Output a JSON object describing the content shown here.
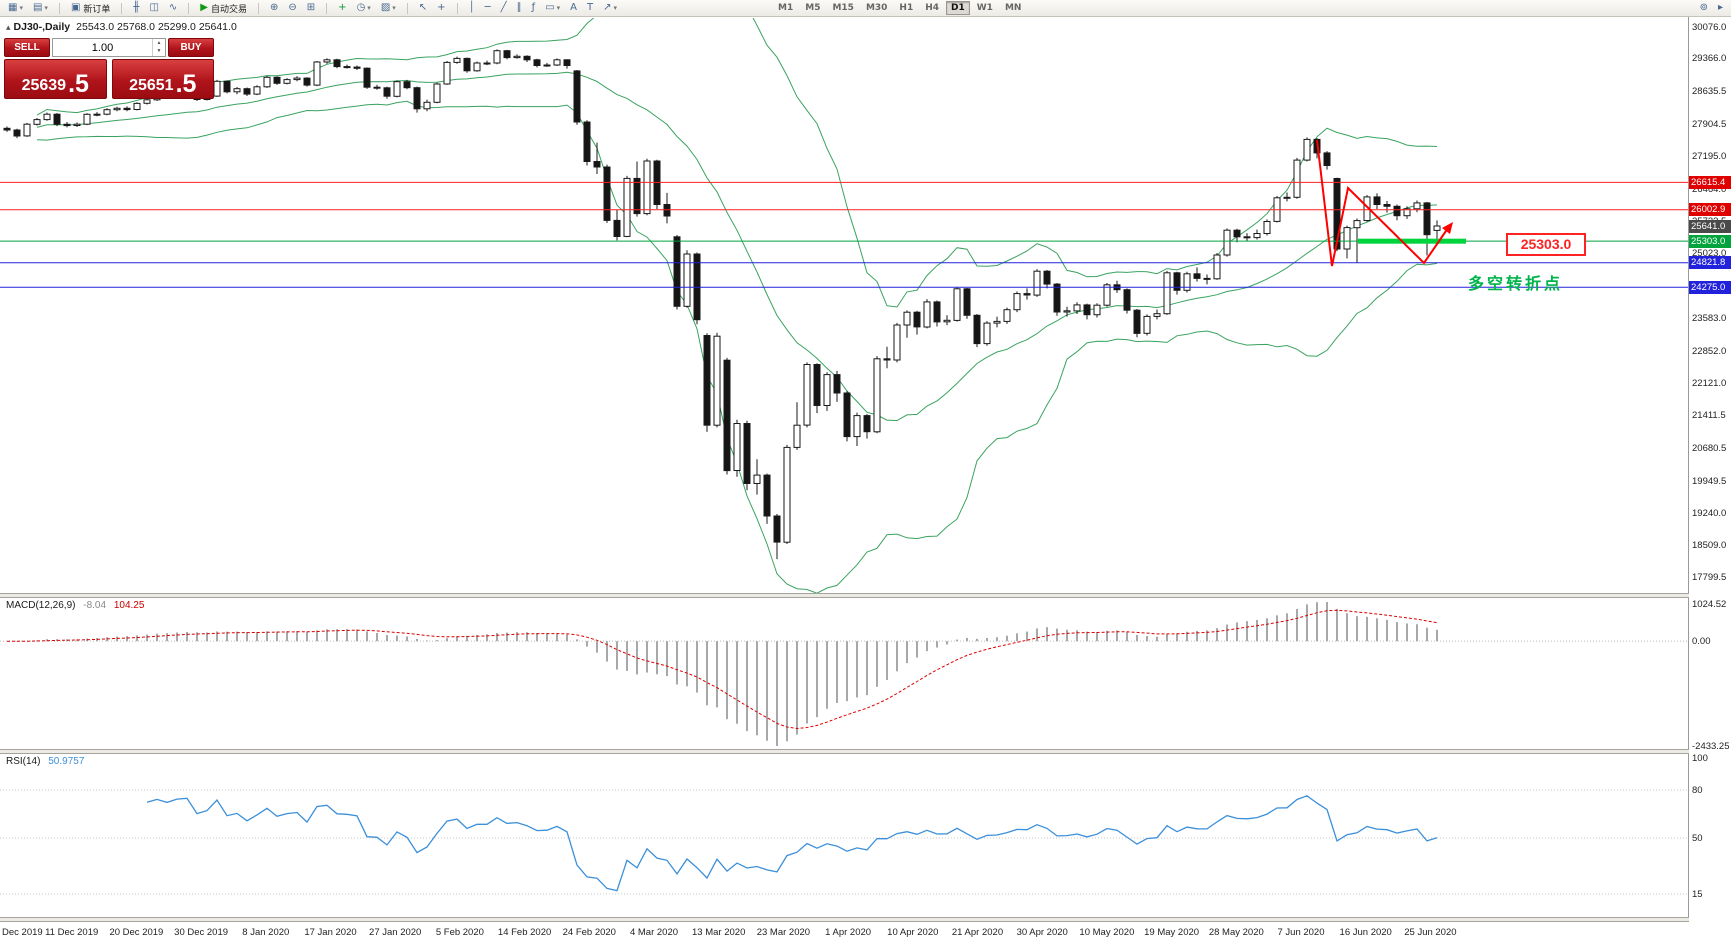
{
  "toolbar": {
    "arrow_glyph": "▾",
    "groups": [
      {
        "items": [
          {
            "name": "new-chart-button",
            "glyph": "▦",
            "arrow": true
          },
          {
            "name": "profiles-button",
            "glyph": "▤",
            "arrow": true
          }
        ]
      },
      {
        "items": [
          {
            "name": "new-order-button",
            "glyph": "▣",
            "label": "新订单"
          }
        ]
      },
      {
        "items": [
          {
            "name": "bar-chart-button",
            "glyph": "╫"
          },
          {
            "name": "candlestick-chart-button",
            "glyph": "◫"
          },
          {
            "name": "line-chart-button",
            "glyph": "∿"
          }
        ]
      },
      {
        "items": [
          {
            "name": "autotrade-button",
            "glyph": "▶",
            "glyph_color": "#119911",
            "label": "自动交易"
          }
        ]
      },
      {
        "items": [
          {
            "name": "zoom-in-button",
            "glyph": "⊕"
          },
          {
            "name": "zoom-out-button",
            "glyph": "⊖"
          },
          {
            "name": "tile-windows-button",
            "glyph": "⊞"
          }
        ]
      },
      {
        "items": [
          {
            "name": "add-indicator-button",
            "glyph": "+",
            "glyph_color": "#0a9a3c"
          },
          {
            "name": "period-menu-button",
            "glyph": "◷",
            "arrow": true
          },
          {
            "name": "template-menu-button",
            "glyph": "▨",
            "arrow": true
          }
        ]
      },
      {
        "items": [
          {
            "name": "cursor-button",
            "glyph": "↖"
          },
          {
            "name": "crosshair-button",
            "glyph": "+"
          }
        ]
      },
      {
        "items": [
          {
            "name": "vertical-line-button",
            "glyph": "│"
          },
          {
            "name": "horizontal-line-button",
            "glyph": "─"
          },
          {
            "name": "trendline-button",
            "glyph": "╱"
          },
          {
            "name": "channel-button",
            "glyph": "∥"
          },
          {
            "name": "fibonacci-button",
            "glyph": "ƒ"
          },
          {
            "name": "shapes-button",
            "glyph": "▭",
            "arrow": true
          },
          {
            "name": "text-button",
            "glyph": "A"
          },
          {
            "name": "label-button",
            "glyph": "T"
          },
          {
            "name": "arrow-tools-button",
            "glyph": "↗",
            "arrow": true
          }
        ]
      }
    ],
    "timeframes": [
      "M1",
      "M5",
      "M15",
      "M30",
      "H1",
      "H4",
      "D1",
      "W1",
      "MN"
    ],
    "active_timeframe": "D1",
    "right_items": [
      {
        "name": "magnifier-icon",
        "glyph": "⊚"
      },
      {
        "name": "pointer-icon",
        "glyph": "▸"
      }
    ]
  },
  "chart_title": {
    "icon_glyph": "▴",
    "symbol": "DJ30-,Daily",
    "open": "25543.0",
    "high": "25768.0",
    "low": "25299.0",
    "close": "25641.0"
  },
  "trade_panel": {
    "sell_label": "SELL",
    "buy_label": "BUY",
    "volume": "1.00",
    "spinner_up": "▲",
    "spinner_down": "▼",
    "sell_price_main": "25639",
    "sell_price_frac": ".5",
    "buy_price_main": "25651",
    "buy_price_frac": ".5"
  },
  "annotations": {
    "support_callout": "25303.0",
    "turning_point_text": "多空转折点"
  },
  "chart_data": {
    "type": "candlestick",
    "symbol": "DJ30-",
    "period": "Daily",
    "last_ohlc": {
      "open": 25543.0,
      "high": 25768.0,
      "low": 25299.0,
      "close": 25641.0
    },
    "price_axis_ticks": [
      30076.0,
      29366.0,
      28635.5,
      27904.5,
      27195.0,
      26464.0,
      25733.5,
      25023.0,
      24292.5,
      23583.0,
      22852.0,
      22121.0,
      21411.5,
      20680.5,
      19949.5,
      19240.0,
      18509.0,
      17799.5
    ],
    "time_axis": [
      "Dec 2019",
      "11 Dec 2019",
      "20 Dec 2019",
      "30 Dec 2019",
      "8 Jan 2020",
      "17 Jan 2020",
      "27 Jan 2020",
      "5 Feb 2020",
      "14 Feb 2020",
      "24 Feb 2020",
      "4 Mar 2020",
      "13 Mar 2020",
      "23 Mar 2020",
      "1 Apr 2020",
      "10 Apr 2020",
      "21 Apr 2020",
      "30 Apr 2020",
      "10 May 2020",
      "19 May 2020",
      "28 May 2020",
      "7 Jun 2020",
      "16 Jun 2020",
      "25 Jun 2020"
    ],
    "levels": [
      {
        "label": "26615.4",
        "value": 26615.4,
        "color": "#ff2020",
        "line": true,
        "tag_bg": "#e00000"
      },
      {
        "label": "26002.9",
        "value": 26002.9,
        "color": "#ff2020",
        "line": true,
        "tag_bg": "#e00000"
      },
      {
        "label": "25641.0",
        "value": 25641.0,
        "color": "#4a4a4a",
        "line": false,
        "tag_bg": "#4a4a4a"
      },
      {
        "label": "25303.0",
        "value": 25303.0,
        "color": "#00a33c",
        "line": true,
        "tag_bg": "#00a33c"
      },
      {
        "label": "24821.8",
        "value": 24821.8,
        "color": "#2222dd",
        "line": true,
        "tag_bg": "#2222dd"
      },
      {
        "label": "24275.0",
        "value": 24275.0,
        "color": "#2222dd",
        "line": true,
        "tag_bg": "#2222dd"
      }
    ],
    "highlight_bar": {
      "value": 25303.0,
      "color": "#00d43c"
    },
    "bollinger": {
      "period": 20,
      "deviation": 2,
      "color": "#3aa35f"
    },
    "candles": [
      [
        27820,
        27860,
        27740,
        27783
      ],
      [
        27783,
        27810,
        27600,
        27649
      ],
      [
        27649,
        27940,
        27630,
        27911
      ],
      [
        27911,
        28050,
        27880,
        28015
      ],
      [
        28015,
        28170,
        27990,
        28135
      ],
      [
        28135,
        28160,
        27870,
        27910
      ],
      [
        27910,
        27960,
        27840,
        27882
      ],
      [
        27882,
        27950,
        27850,
        27911
      ],
      [
        27911,
        28160,
        27890,
        28132
      ],
      [
        28132,
        28180,
        28090,
        28135
      ],
      [
        28135,
        28270,
        28110,
        28235
      ],
      [
        28235,
        28300,
        28200,
        28267
      ],
      [
        28267,
        28310,
        28200,
        28239
      ],
      [
        28239,
        28400,
        28220,
        28376
      ],
      [
        28376,
        28490,
        28350,
        28455
      ],
      [
        28455,
        28580,
        28430,
        28551
      ],
      [
        28551,
        28590,
        28480,
        28515
      ],
      [
        28515,
        28650,
        28500,
        28621
      ],
      [
        28621,
        28680,
        28590,
        28645
      ],
      [
        28645,
        28670,
        28430,
        28462
      ],
      [
        28462,
        28570,
        28440,
        28538
      ],
      [
        28538,
        28900,
        28520,
        28869
      ],
      [
        28869,
        28890,
        28600,
        28635
      ],
      [
        28635,
        28740,
        28580,
        28704
      ],
      [
        28704,
        28730,
        28540,
        28584
      ],
      [
        28584,
        28780,
        28560,
        28746
      ],
      [
        28746,
        28990,
        28720,
        28957
      ],
      [
        28957,
        28980,
        28790,
        28824
      ],
      [
        28824,
        28940,
        28800,
        28907
      ],
      [
        28907,
        28980,
        28870,
        28940
      ],
      [
        28940,
        28960,
        28750,
        28783
      ],
      [
        28783,
        29320,
        28760,
        29298
      ],
      [
        29298,
        29380,
        29260,
        29348
      ],
      [
        29348,
        29370,
        29160,
        29196
      ],
      [
        29196,
        29240,
        29150,
        29186
      ],
      [
        29186,
        29220,
        29120,
        29160
      ],
      [
        29160,
        29180,
        28700,
        28736
      ],
      [
        28736,
        28790,
        28680,
        28723
      ],
      [
        28723,
        28750,
        28480,
        28535
      ],
      [
        28535,
        28890,
        28510,
        28860
      ],
      [
        28860,
        28900,
        28690,
        28726
      ],
      [
        28726,
        28750,
        28170,
        28256
      ],
      [
        28256,
        28460,
        28200,
        28400
      ],
      [
        28400,
        28840,
        28380,
        28808
      ],
      [
        28808,
        29320,
        28790,
        29290
      ],
      [
        29290,
        29420,
        29260,
        29380
      ],
      [
        29380,
        29400,
        29060,
        29103
      ],
      [
        29103,
        29310,
        29080,
        29277
      ],
      [
        29277,
        29330,
        29230,
        29276
      ],
      [
        29276,
        29580,
        29250,
        29551
      ],
      [
        29551,
        29570,
        29360,
        29398
      ],
      [
        29398,
        29470,
        29370,
        29426
      ],
      [
        29426,
        29450,
        29300,
        29348
      ],
      [
        29348,
        29370,
        29180,
        29220
      ],
      [
        29220,
        29280,
        29190,
        29232
      ],
      [
        29232,
        29380,
        29210,
        29348
      ],
      [
        29348,
        29360,
        29150,
        29220
      ],
      [
        29100,
        29120,
        27900,
        27961
      ],
      [
        27961,
        28000,
        26990,
        27081
      ],
      [
        27081,
        27500,
        26800,
        26958
      ],
      [
        26958,
        27010,
        25710,
        25767
      ],
      [
        25767,
        26000,
        25320,
        25409
      ],
      [
        25409,
        26760,
        25390,
        26703
      ],
      [
        26703,
        27080,
        25850,
        25917
      ],
      [
        25917,
        27140,
        25880,
        27090
      ],
      [
        27090,
        27120,
        26020,
        26121
      ],
      [
        26121,
        26380,
        25700,
        25864
      ],
      [
        25400,
        25440,
        23780,
        23851
      ],
      [
        23851,
        25100,
        23820,
        25018
      ],
      [
        25018,
        25050,
        23450,
        23553
      ],
      [
        23200,
        23250,
        21050,
        21200
      ],
      [
        21200,
        23260,
        21150,
        23185
      ],
      [
        22650,
        22700,
        20100,
        20188
      ],
      [
        20188,
        21320,
        20050,
        21237
      ],
      [
        21237,
        21300,
        19750,
        19899
      ],
      [
        19899,
        20440,
        19650,
        20087
      ],
      [
        20087,
        20120,
        19000,
        19174
      ],
      [
        19174,
        19220,
        18213,
        18592
      ],
      [
        18592,
        20760,
        18550,
        20705
      ],
      [
        20705,
        21710,
        20650,
        21200
      ],
      [
        21200,
        22600,
        21150,
        22552
      ],
      [
        22552,
        22580,
        21470,
        21637
      ],
      [
        21637,
        22380,
        21520,
        22327
      ],
      [
        22327,
        22410,
        21720,
        21917
      ],
      [
        21917,
        21960,
        20840,
        20944
      ],
      [
        20944,
        21480,
        20735,
        21413
      ],
      [
        21413,
        21450,
        20900,
        21053
      ],
      [
        21053,
        22740,
        21020,
        22680
      ],
      [
        22680,
        22950,
        22470,
        22654
      ],
      [
        22654,
        23480,
        22600,
        23434
      ],
      [
        23434,
        23760,
        23150,
        23719
      ],
      [
        23719,
        23750,
        23220,
        23391
      ],
      [
        23391,
        24010,
        23360,
        23950
      ],
      [
        23950,
        23980,
        23400,
        23504
      ],
      [
        23504,
        23650,
        23430,
        23538
      ],
      [
        23538,
        24280,
        23510,
        24242
      ],
      [
        24242,
        24260,
        23570,
        23650
      ],
      [
        23650,
        23680,
        22940,
        23019
      ],
      [
        23019,
        23520,
        22970,
        23476
      ],
      [
        23476,
        23620,
        23380,
        23515
      ],
      [
        23515,
        23820,
        23460,
        23775
      ],
      [
        23775,
        24180,
        23720,
        24134
      ],
      [
        24134,
        24250,
        24000,
        24102
      ],
      [
        24102,
        24680,
        24060,
        24634
      ],
      [
        24634,
        24660,
        24250,
        24346
      ],
      [
        24346,
        24370,
        23640,
        23724
      ],
      [
        23724,
        23840,
        23620,
        23750
      ],
      [
        23750,
        23940,
        23680,
        23883
      ],
      [
        23883,
        23910,
        23560,
        23665
      ],
      [
        23665,
        23920,
        23600,
        23876
      ],
      [
        23876,
        24370,
        23840,
        24331
      ],
      [
        24331,
        24420,
        24150,
        24222
      ],
      [
        24222,
        24250,
        23690,
        23765
      ],
      [
        23765,
        23790,
        23160,
        23248
      ],
      [
        23248,
        23670,
        23200,
        23625
      ],
      [
        23625,
        23780,
        23560,
        23685
      ],
      [
        23685,
        24640,
        23660,
        24597
      ],
      [
        24597,
        24620,
        24110,
        24207
      ],
      [
        24207,
        24620,
        24160,
        24576
      ],
      [
        24576,
        24720,
        24400,
        24474
      ],
      [
        24474,
        24560,
        24340,
        24465
      ],
      [
        24465,
        25040,
        24440,
        24995
      ],
      [
        24995,
        25590,
        24960,
        25548
      ],
      [
        25548,
        25580,
        25280,
        25401
      ],
      [
        25401,
        25480,
        25300,
        25383
      ],
      [
        25383,
        25560,
        25340,
        25475
      ],
      [
        25475,
        25790,
        25430,
        25743
      ],
      [
        25743,
        26310,
        25720,
        26270
      ],
      [
        26270,
        26390,
        26190,
        26282
      ],
      [
        26282,
        27160,
        26250,
        27111
      ],
      [
        27111,
        27617,
        27080,
        27572
      ],
      [
        27572,
        27600,
        27150,
        27272
      ],
      [
        27272,
        27310,
        26900,
        26990
      ],
      [
        26700,
        26720,
        25080,
        25128
      ],
      [
        25128,
        25650,
        24920,
        25605
      ],
      [
        25605,
        25810,
        24822,
        25763
      ],
      [
        25763,
        26330,
        25740,
        26290
      ],
      [
        26290,
        26370,
        26020,
        26120
      ],
      [
        26120,
        26200,
        25940,
        26080
      ],
      [
        26080,
        26120,
        25770,
        25871
      ],
      [
        25871,
        26080,
        25800,
        26025
      ],
      [
        26025,
        26210,
        25950,
        26156
      ],
      [
        26156,
        26180,
        24985,
        25446
      ],
      [
        25543,
        25768,
        25299,
        25641
      ]
    ],
    "macd": {
      "name": "MACD(12,26,9)",
      "value": "-8.04",
      "signal_value": "104.25",
      "fast": 12,
      "slow": 26,
      "signal": 9,
      "ticks": [
        "1024.52",
        "0.00",
        "-2433.25"
      ],
      "hist_color": "#a8a8a8",
      "signal_color": "#dd0000"
    },
    "rsi": {
      "name": "RSI(14)",
      "value": "50.9757",
      "period": 14,
      "ticks": [
        100,
        80,
        50,
        15
      ],
      "levels": [
        80,
        50,
        15
      ],
      "color": "#3c8fd9"
    }
  },
  "colors": {
    "up": "#ffffff",
    "down": "#151515",
    "outline": "#1a1a1a",
    "axis_text": "#222222"
  }
}
